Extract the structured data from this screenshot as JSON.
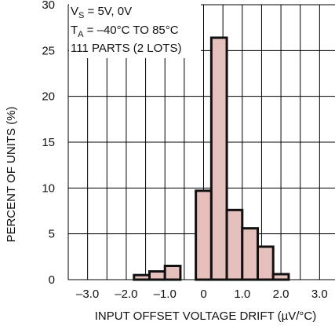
{
  "chart_data": {
    "type": "bar",
    "title": "",
    "xlabel": "INPUT OFFSET VOLTAGE DRIFT (µV/°C)",
    "ylabel": "PERCENT OF UNITS (%)",
    "xlim": [
      -3.5,
      3.5
    ],
    "ylim": [
      0,
      30
    ],
    "x_ticks": [
      -3.0,
      -2.0,
      -1.0,
      0,
      1.0,
      2.0,
      3.0
    ],
    "x_tick_labels": [
      "–3.0",
      "–2.0",
      "–1.0",
      "0",
      "1.0",
      "2.0",
      "3.0"
    ],
    "y_ticks": [
      0,
      5,
      10,
      15,
      20,
      25,
      30
    ],
    "y_tick_labels": [
      "0",
      "5",
      "10",
      "15",
      "20",
      "25",
      "30"
    ],
    "grid": true,
    "bin_width": 0.4,
    "bins_start": [
      -1.8,
      -1.4,
      -1.0,
      -0.6,
      -0.2,
      0.2,
      0.6,
      1.0,
      1.4,
      1.8,
      2.2
    ],
    "values": [
      0.5,
      0.9,
      1.5,
      0,
      9.7,
      26.4,
      7.6,
      5.6,
      3.6,
      0.6,
      0
    ],
    "bar_color": "#e6c0bc",
    "annotations": [
      {
        "main": "V",
        "sub": "S",
        "rest": " = 5V, 0V"
      },
      {
        "main": "T",
        "sub": "A",
        "rest": " = –40°C TO 85°C"
      },
      {
        "main": "111 PARTS (2 LOTS)",
        "sub": "",
        "rest": ""
      }
    ]
  }
}
